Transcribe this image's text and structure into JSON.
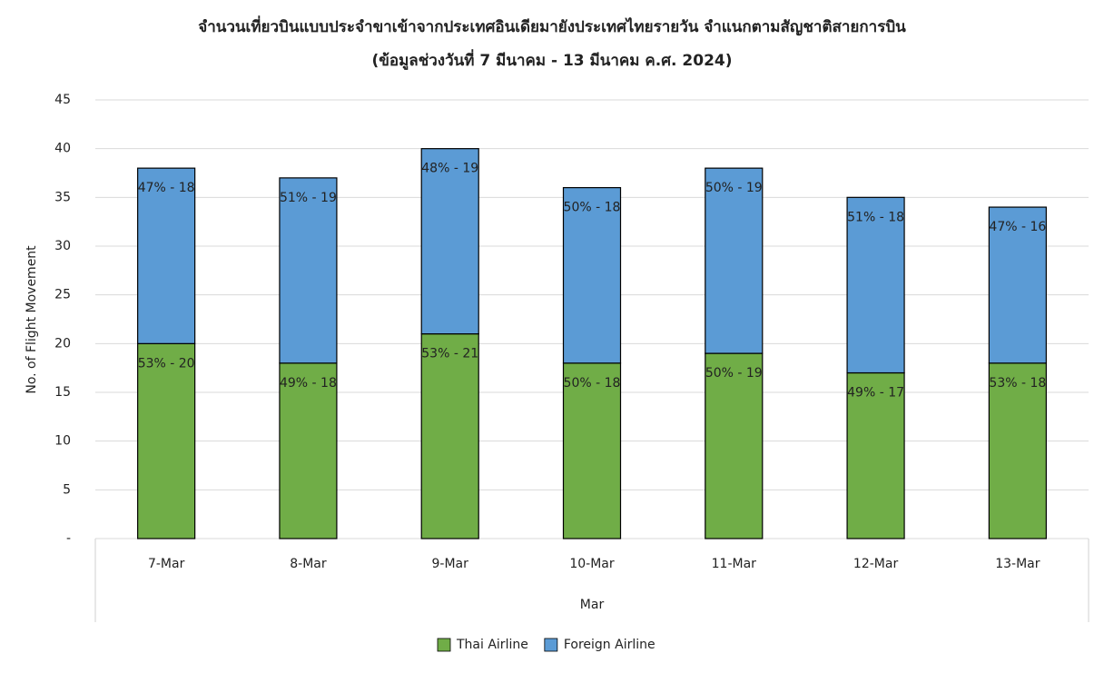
{
  "chart_data": {
    "type": "stacked_bar",
    "title": "จำนวนเที่ยวบินแบบประจำขาเข้าจากประเทศอินเดียมายังประเทศไทยรายวัน  จำแนกตามสัญชาติสายการบิน",
    "subtitle": "(ข้อมูลช่วงวันที่ 7 มีนาคม - 13 มีนาคม ค.ศ. 2024)",
    "x_label": "Mar",
    "y_label": "No. of Flight Movement",
    "categories": [
      "7-Mar",
      "8-Mar",
      "9-Mar",
      "10-Mar",
      "11-Mar",
      "12-Mar",
      "13-Mar"
    ],
    "series": [
      {
        "name": "Thai Airline",
        "color": "#70ad47",
        "values": [
          20,
          18,
          21,
          18,
          19,
          17,
          18
        ],
        "value_labels": [
          "53% -  20",
          "49% -  18",
          "53% -  21",
          "50% -  18",
          "50% -  19",
          "49% -  17",
          "53% -  18"
        ]
      },
      {
        "name": "Foreign Airline",
        "color": "#5b9bd5",
        "values": [
          18,
          19,
          19,
          18,
          19,
          18,
          16
        ],
        "value_labels": [
          "47% -  18",
          "51% -  19",
          "48% -  19",
          "50% -  18",
          "50% -  19",
          "51% -  18",
          "47% -  16"
        ]
      }
    ],
    "ylim": [
      0,
      45
    ],
    "yticks": [
      {
        "value": 0,
        "label": "-"
      },
      5,
      10,
      15,
      20,
      25,
      30,
      35,
      40,
      45
    ],
    "grid": true,
    "legend": "bottom"
  }
}
